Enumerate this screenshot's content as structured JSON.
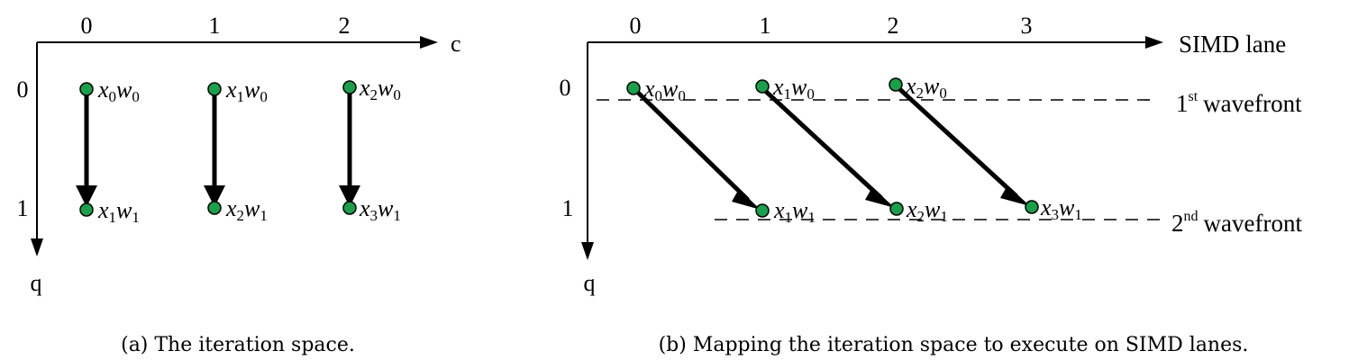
{
  "panel_a": {
    "axis_x_label": "c",
    "axis_y_label": "q",
    "col_labels": [
      "0",
      "1",
      "2"
    ],
    "row_labels": [
      "0",
      "1"
    ],
    "nodes": [
      {
        "x": "x",
        "xs": "0",
        "w": "w",
        "ws": "0"
      },
      {
        "x": "x",
        "xs": "1",
        "w": "w",
        "ws": "0"
      },
      {
        "x": "x",
        "xs": "2",
        "w": "w",
        "ws": "0"
      },
      {
        "x": "x",
        "xs": "1",
        "w": "w",
        "ws": "1"
      },
      {
        "x": "x",
        "xs": "2",
        "w": "w",
        "ws": "1"
      },
      {
        "x": "x",
        "xs": "3",
        "w": "w",
        "ws": "1"
      }
    ],
    "caption": "(a) The iteration space."
  },
  "panel_b": {
    "axis_x_label": "SIMD lane",
    "axis_y_label": "q",
    "col_labels": [
      "0",
      "1",
      "2",
      "3"
    ],
    "row_labels": [
      "0",
      "1"
    ],
    "nodes": [
      {
        "x": "x",
        "xs": "0",
        "w": "w",
        "ws": "0"
      },
      {
        "x": "x",
        "xs": "1",
        "w": "w",
        "ws": "0"
      },
      {
        "x": "x",
        "xs": "2",
        "w": "w",
        "ws": "0"
      },
      {
        "x": "x",
        "xs": "1",
        "w": "w",
        "ws": "1"
      },
      {
        "x": "x",
        "xs": "2",
        "w": "w",
        "ws": "1"
      },
      {
        "x": "x",
        "xs": "3",
        "w": "w",
        "ws": "1"
      }
    ],
    "wavefront_1": {
      "num": "1",
      "sup": "st",
      "text": "wavefront"
    },
    "wavefront_2": {
      "num": "2",
      "sup": "nd",
      "text": "wavefront"
    },
    "caption": "(b) Mapping the iteration space to execute on SIMD lanes."
  },
  "colors": {
    "node_fill": "#1a9f4a",
    "node_stroke": "#000000",
    "ink": "#000000"
  }
}
